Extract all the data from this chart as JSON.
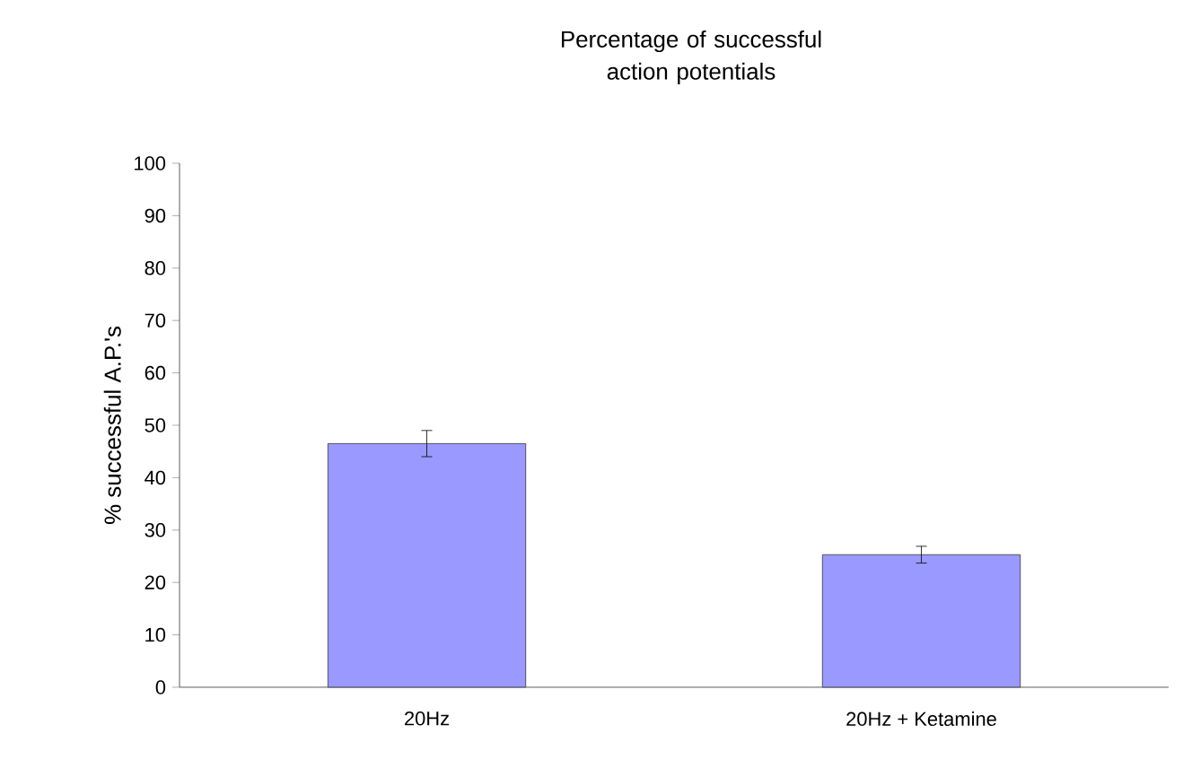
{
  "chart_data": {
    "type": "bar",
    "title": "Percentage of successful action potentials",
    "ylabel": "% successful A.P.'s",
    "categories": [
      "20Hz",
      "20Hz + Ketamine"
    ],
    "values": [
      46.5,
      25.3
    ],
    "errors": [
      2.5,
      1.6
    ],
    "color": "#9999ff",
    "ylim": [
      0,
      100
    ],
    "yticks": [
      0,
      10,
      20,
      30,
      40,
      50,
      60,
      70,
      80,
      90,
      100
    ]
  }
}
